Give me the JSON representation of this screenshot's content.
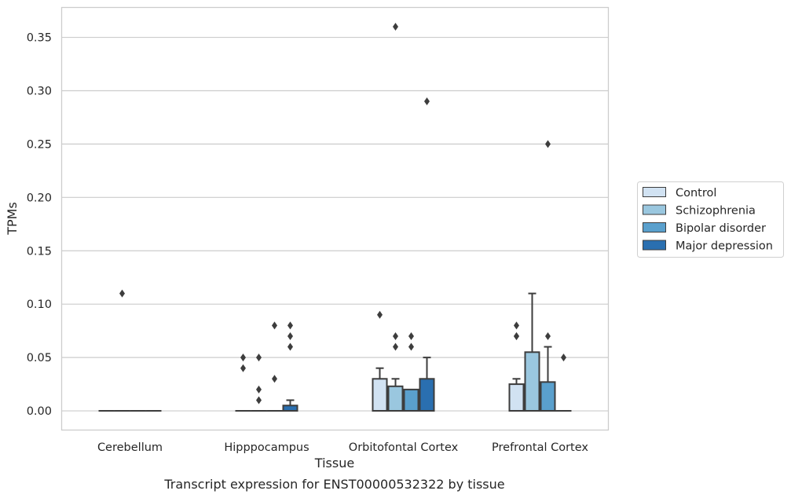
{
  "chart_data": {
    "type": "box",
    "title": "Transcript expression for ENST00000532322 by tissue",
    "xlabel": "Tissue",
    "ylabel": "TPMs",
    "ylim": [
      -0.018,
      0.378
    ],
    "yticks": [
      "0.00",
      "0.05",
      "0.10",
      "0.15",
      "0.20",
      "0.25",
      "0.30",
      "0.35"
    ],
    "grid": "horizontal",
    "legend_position": "right",
    "categories": [
      "Cerebellum",
      "Hipppocampus",
      "Orbitofontal Cortex",
      "Prefrontal Cortex"
    ],
    "series": [
      {
        "name": "Control",
        "color": "#d1e2f2",
        "boxes": [
          {
            "q1": 0,
            "median": 0,
            "q3": 0,
            "whisker_low": 0,
            "whisker_high": 0,
            "outliers": []
          },
          {
            "q1": 0,
            "median": 0,
            "q3": 0,
            "whisker_low": 0,
            "whisker_high": 0,
            "outliers": [
              0.04,
              0.05
            ]
          },
          {
            "q1": 0,
            "median": 0,
            "q3": 0.03,
            "whisker_low": 0,
            "whisker_high": 0.04,
            "outliers": [
              0.09
            ]
          },
          {
            "q1": 0,
            "median": 0,
            "q3": 0.025,
            "whisker_low": 0,
            "whisker_high": 0.03,
            "outliers": [
              0.07,
              0.07,
              0.08
            ]
          }
        ]
      },
      {
        "name": "Schizophrenia",
        "color": "#9ac7df",
        "boxes": [
          {
            "q1": 0,
            "median": 0,
            "q3": 0,
            "whisker_low": 0,
            "whisker_high": 0,
            "outliers": [
              0.11
            ]
          },
          {
            "q1": 0,
            "median": 0,
            "q3": 0,
            "whisker_low": 0,
            "whisker_high": 0,
            "outliers": [
              0.01,
              0.02,
              0.05
            ]
          },
          {
            "q1": 0,
            "median": 0,
            "q3": 0.023,
            "whisker_low": 0,
            "whisker_high": 0.03,
            "outliers": [
              0.06,
              0.07,
              0.36
            ]
          },
          {
            "q1": 0,
            "median": 0,
            "q3": 0.055,
            "whisker_low": 0,
            "whisker_high": 0.11,
            "outliers": []
          }
        ]
      },
      {
        "name": "Bipolar disorder",
        "color": "#5aa0cd",
        "boxes": [
          {
            "q1": 0,
            "median": 0,
            "q3": 0,
            "whisker_low": 0,
            "whisker_high": 0,
            "outliers": []
          },
          {
            "q1": 0,
            "median": 0,
            "q3": 0,
            "whisker_low": 0,
            "whisker_high": 0,
            "outliers": [
              0.03,
              0.08
            ]
          },
          {
            "q1": 0,
            "median": 0,
            "q3": 0.02,
            "whisker_low": 0,
            "whisker_high": 0.02,
            "outliers": [
              0.06,
              0.07
            ]
          },
          {
            "q1": 0,
            "median": 0,
            "q3": 0.027,
            "whisker_low": 0,
            "whisker_high": 0.06,
            "outliers": [
              0.07,
              0.25
            ]
          }
        ]
      },
      {
        "name": "Major depression",
        "color": "#2a6fb0",
        "boxes": [
          {
            "q1": 0,
            "median": 0,
            "q3": 0,
            "whisker_low": 0,
            "whisker_high": 0,
            "outliers": []
          },
          {
            "q1": 0,
            "median": 0,
            "q3": 0.005,
            "whisker_low": 0,
            "whisker_high": 0.01,
            "outliers": [
              0.06,
              0.07,
              0.08
            ]
          },
          {
            "q1": 0,
            "median": 0,
            "q3": 0.03,
            "whisker_low": 0,
            "whisker_high": 0.05,
            "outliers": [
              0.29
            ]
          },
          {
            "q1": 0,
            "median": 0,
            "q3": 0,
            "whisker_low": 0,
            "whisker_high": 0,
            "outliers": [
              0.05
            ]
          }
        ]
      }
    ]
  }
}
